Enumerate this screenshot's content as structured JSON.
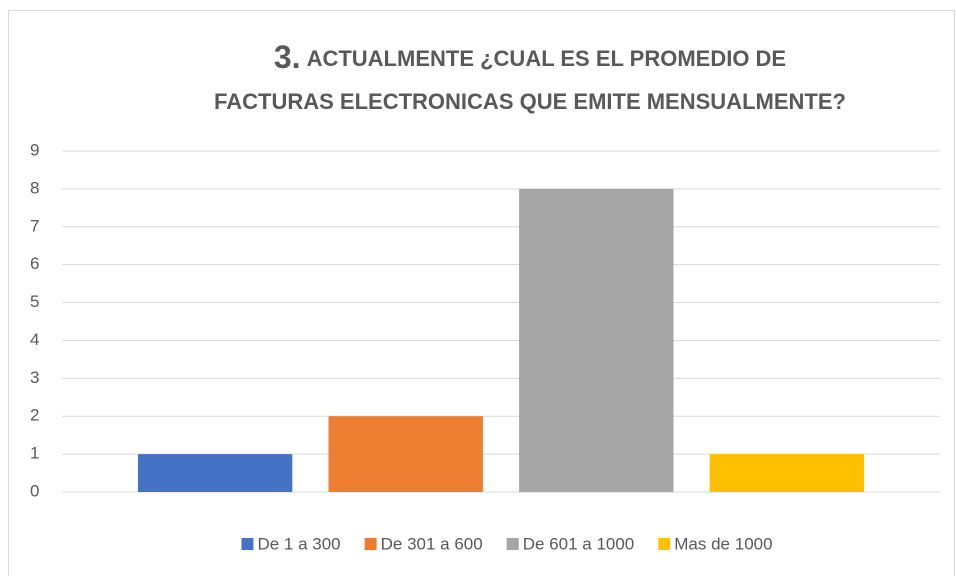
{
  "chart_data": {
    "type": "bar",
    "title_number": "3.",
    "title": [
      "ACTUALMENTE ¿CUAL ES EL PROMEDIO DE",
      "FACTURAS ELECTRONICAS QUE EMITE MENSUALMENTE?"
    ],
    "categories": [
      null
    ],
    "series": [
      {
        "name": "De 1 a 300",
        "color": "#4472c4",
        "values": [
          1
        ]
      },
      {
        "name": "De 301 a 600",
        "color": "#ed7d31",
        "values": [
          2
        ]
      },
      {
        "name": "De 601 a 1000",
        "color": "#a5a5a5",
        "values": [
          8
        ]
      },
      {
        "name": "Mas de 1000",
        "color": "#ffc000",
        "values": [
          1
        ]
      }
    ],
    "ylim": [
      0,
      9
    ],
    "yticks": [
      0,
      1,
      2,
      3,
      4,
      5,
      6,
      7,
      8,
      9
    ],
    "grid": true,
    "legend": "bottom"
  }
}
